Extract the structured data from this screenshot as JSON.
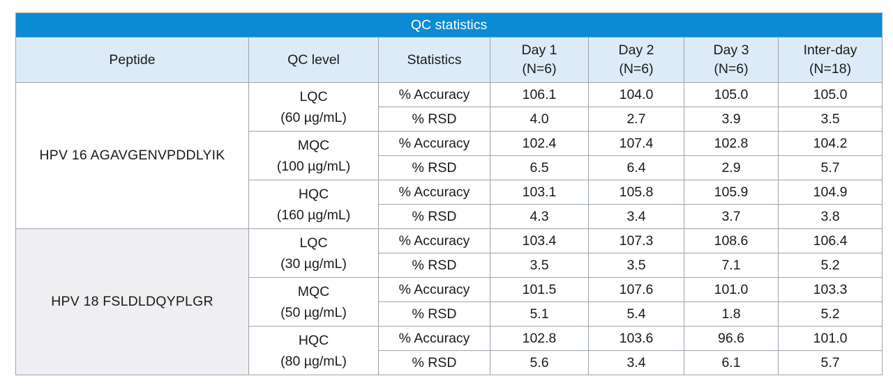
{
  "title": "QC statistics",
  "headers": {
    "peptide": "Peptide",
    "qc_level": "QC level",
    "statistics": "Statistics",
    "day1": [
      "Day 1",
      "(N=6)"
    ],
    "day2": [
      "Day 2",
      "(N=6)"
    ],
    "day3": [
      "Day 3",
      "(N=6)"
    ],
    "interday": [
      "Inter-day",
      "(N=18)"
    ]
  },
  "groups": [
    {
      "peptide": "HPV 16  AGAVGENVPDDLYIK",
      "levels": [
        {
          "name": "LQC",
          "conc": "(60 µg/mL)",
          "rows": [
            {
              "stat": "% Accuracy",
              "day1": "106.1",
              "day2": "104.0",
              "day3": "105.0",
              "interday": "105.0"
            },
            {
              "stat": "% RSD",
              "day1": "4.0",
              "day2": "2.7",
              "day3": "3.9",
              "interday": "3.5"
            }
          ]
        },
        {
          "name": "MQC",
          "conc": "(100 µg/mL)",
          "rows": [
            {
              "stat": "% Accuracy",
              "day1": "102.4",
              "day2": "107.4",
              "day3": "102.8",
              "interday": "104.2"
            },
            {
              "stat": "% RSD",
              "day1": "6.5",
              "day2": "6.4",
              "day3": "2.9",
              "interday": "5.7"
            }
          ]
        },
        {
          "name": "HQC",
          "conc": "(160 µg/mL)",
          "rows": [
            {
              "stat": "% Accuracy",
              "day1": "103.1",
              "day2": "105.8",
              "day3": "105.9",
              "interday": "104.9"
            },
            {
              "stat": "% RSD",
              "day1": "4.3",
              "day2": "3.4",
              "day3": "3.7",
              "interday": "3.8"
            }
          ]
        }
      ]
    },
    {
      "peptide": "HPV 18  FSLDLDQYPLGR",
      "levels": [
        {
          "name": "LQC",
          "conc": "(30 µg/mL)",
          "rows": [
            {
              "stat": "% Accuracy",
              "day1": "103.4",
              "day2": "107.3",
              "day3": "108.6",
              "interday": "106.4"
            },
            {
              "stat": "% RSD",
              "day1": "3.5",
              "day2": "3.5",
              "day3": "7.1",
              "interday": "5.2"
            }
          ]
        },
        {
          "name": "MQC",
          "conc": "(50 µg/mL)",
          "rows": [
            {
              "stat": "% Accuracy",
              "day1": "101.5",
              "day2": "107.6",
              "day3": "101.0",
              "interday": "103.3"
            },
            {
              "stat": "% RSD",
              "day1": "5.1",
              "day2": "5.4",
              "day3": "1.8",
              "interday": "5.2"
            }
          ]
        },
        {
          "name": "HQC",
          "conc": "(80 µg/mL)",
          "rows": [
            {
              "stat": "% Accuracy",
              "day1": "102.8",
              "day2": "103.6",
              "day3": "96.6",
              "interday": "101.0"
            },
            {
              "stat": "% RSD",
              "day1": "5.6",
              "day2": "3.4",
              "day3": "6.1",
              "interday": "5.7"
            }
          ]
        }
      ]
    }
  ]
}
